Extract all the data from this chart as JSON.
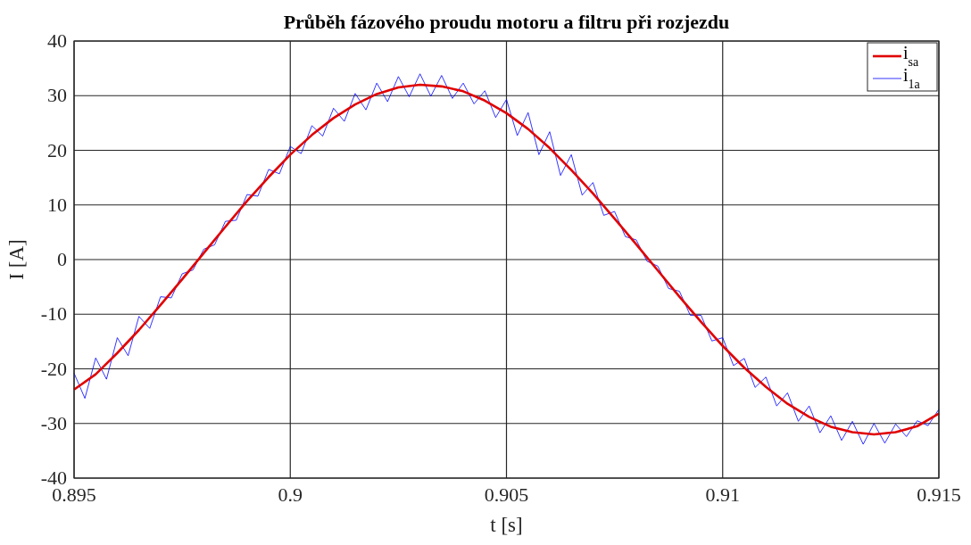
{
  "chart_data": {
    "type": "line",
    "title": "Průběh fázového proudu motoru a filtru při rozjezdu",
    "xlabel": "t [s]",
    "ylabel": "I [A]",
    "xlim": [
      0.895,
      0.915
    ],
    "xticks": [
      0.895,
      0.9,
      0.905,
      0.91,
      0.915
    ],
    "ylim": [
      -40,
      40
    ],
    "yticks": [
      -40,
      -30,
      -20,
      -10,
      0,
      10,
      20,
      30,
      40
    ],
    "grid": true,
    "legend": "top right",
    "line_style": "solid",
    "marker": "none",
    "series": [
      {
        "name": "i$_{sa}$",
        "color": "#e00000",
        "x": [
          0.895,
          0.8955,
          0.896,
          0.8965,
          0.897,
          0.8975,
          0.898,
          0.8985,
          0.899,
          0.8995,
          0.9,
          0.9005,
          0.901,
          0.9015,
          0.902,
          0.9025,
          0.903,
          0.9035,
          0.904,
          0.9045,
          0.905,
          0.9055,
          0.906,
          0.9065,
          0.907,
          0.9075,
          0.908,
          0.9085,
          0.909,
          0.9095,
          0.91,
          0.9105,
          0.911,
          0.9115,
          0.912,
          0.9125,
          0.913,
          0.9135,
          0.914,
          0.9145,
          0.915
        ],
        "values": [
          -23.8,
          -21.0,
          -17.1,
          -12.9,
          -8.3,
          -3.6,
          1.2,
          6.0,
          10.7,
          15.1,
          19.2,
          22.8,
          25.9,
          28.4,
          30.3,
          31.5,
          32.0,
          31.7,
          30.8,
          29.1,
          26.8,
          23.9,
          20.4,
          16.4,
          12.1,
          7.5,
          2.8,
          -2.0,
          -6.8,
          -11.4,
          -15.8,
          -19.8,
          -23.3,
          -26.4,
          -28.8,
          -30.6,
          -31.6,
          -32.0,
          -31.6,
          -30.5,
          -28.2
        ]
      },
      {
        "name": "i$_{1a}$",
        "color": "#0000ff",
        "x": [
          0.895,
          0.89525,
          0.8955,
          0.89575,
          0.896,
          0.89625,
          0.8965,
          0.89675,
          0.897,
          0.89725,
          0.8975,
          0.89775,
          0.898,
          0.89825,
          0.8985,
          0.89875,
          0.899,
          0.89925,
          0.8995,
          0.89975,
          0.9,
          0.90025,
          0.9005,
          0.90075,
          0.901,
          0.90125,
          0.9015,
          0.90175,
          0.902,
          0.90225,
          0.9025,
          0.90275,
          0.903,
          0.90325,
          0.9035,
          0.90375,
          0.904,
          0.90425,
          0.9045,
          0.90475,
          0.905,
          0.90525,
          0.9055,
          0.90575,
          0.906,
          0.90625,
          0.9065,
          0.90675,
          0.907,
          0.90725,
          0.9075,
          0.90775,
          0.908,
          0.90825,
          0.9085,
          0.90875,
          0.909,
          0.90925,
          0.9095,
          0.90975,
          0.91,
          0.91025,
          0.9105,
          0.91075,
          0.911,
          0.91125,
          0.9115,
          0.91175,
          0.912,
          0.91225,
          0.9125,
          0.91275,
          0.913,
          0.91325,
          0.9135,
          0.91375,
          0.914,
          0.91425,
          0.9145,
          0.91475,
          0.915
        ],
        "values": [
          -20.8,
          -25.4,
          -18.0,
          -21.9,
          -14.3,
          -17.6,
          -10.4,
          -12.6,
          -6.8,
          -7.0,
          -2.6,
          -1.9,
          1.9,
          2.7,
          7.0,
          7.2,
          11.9,
          11.6,
          16.5,
          15.7,
          20.7,
          19.4,
          24.5,
          22.6,
          27.7,
          25.3,
          30.4,
          27.4,
          32.3,
          28.9,
          33.5,
          29.8,
          34.0,
          29.9,
          33.7,
          29.5,
          32.3,
          28.5,
          30.9,
          26.0,
          29.3,
          22.7,
          26.9,
          19.2,
          23.4,
          15.4,
          19.2,
          11.8,
          14.1,
          8.1,
          8.8,
          4.2,
          3.6,
          -0.3,
          -1.2,
          -5.3,
          -5.8,
          -10.2,
          -10.2,
          -14.9,
          -14.3,
          -19.4,
          -18.1,
          -23.4,
          -21.5,
          -26.8,
          -24.4,
          -29.6,
          -26.8,
          -31.7,
          -28.6,
          -33.1,
          -29.6,
          -33.8,
          -30.0,
          -33.6,
          -30.1,
          -32.4,
          -29.5,
          -30.4,
          -27.4
        ]
      }
    ]
  }
}
